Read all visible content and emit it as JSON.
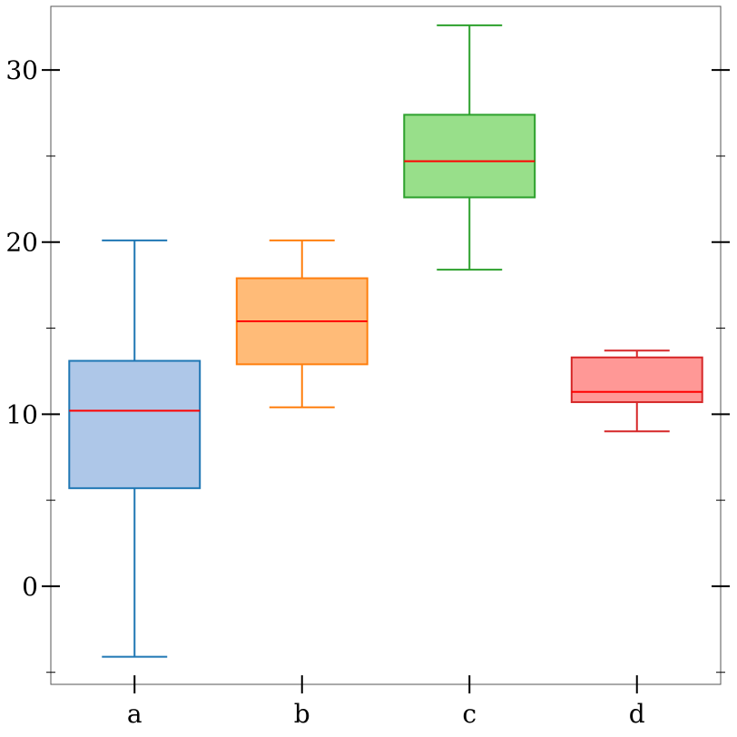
{
  "chart_data": {
    "type": "box",
    "categories": [
      "a",
      "b",
      "c",
      "d"
    ],
    "boxes": [
      {
        "category": "a",
        "whisker_low": -4.1,
        "q1": 5.7,
        "median": 10.2,
        "q3": 13.1,
        "whisker_high": 20.1,
        "face": "#aec7e8",
        "edge": "#1f77b4"
      },
      {
        "category": "b",
        "whisker_low": 10.4,
        "q1": 12.9,
        "median": 15.4,
        "q3": 17.9,
        "whisker_high": 20.1,
        "face": "#ffbb78",
        "edge": "#ff7f0e"
      },
      {
        "category": "c",
        "whisker_low": 18.4,
        "q1": 22.6,
        "median": 24.7,
        "q3": 27.4,
        "whisker_high": 32.6,
        "face": "#98df8a",
        "edge": "#2ca02c"
      },
      {
        "category": "d",
        "whisker_low": 9.0,
        "q1": 10.7,
        "median": 11.3,
        "q3": 13.3,
        "whisker_high": 13.7,
        "face": "#ff9896",
        "edge": "#d62728"
      }
    ],
    "median_color": "#ff0000",
    "yticks": [
      0,
      10,
      20,
      30
    ],
    "yminor": [
      -5,
      5,
      15,
      25
    ],
    "ylim": [
      -5.7,
      33.7
    ],
    "title": "",
    "xlabel": "",
    "ylabel": "",
    "grid": false,
    "legend": "none"
  }
}
